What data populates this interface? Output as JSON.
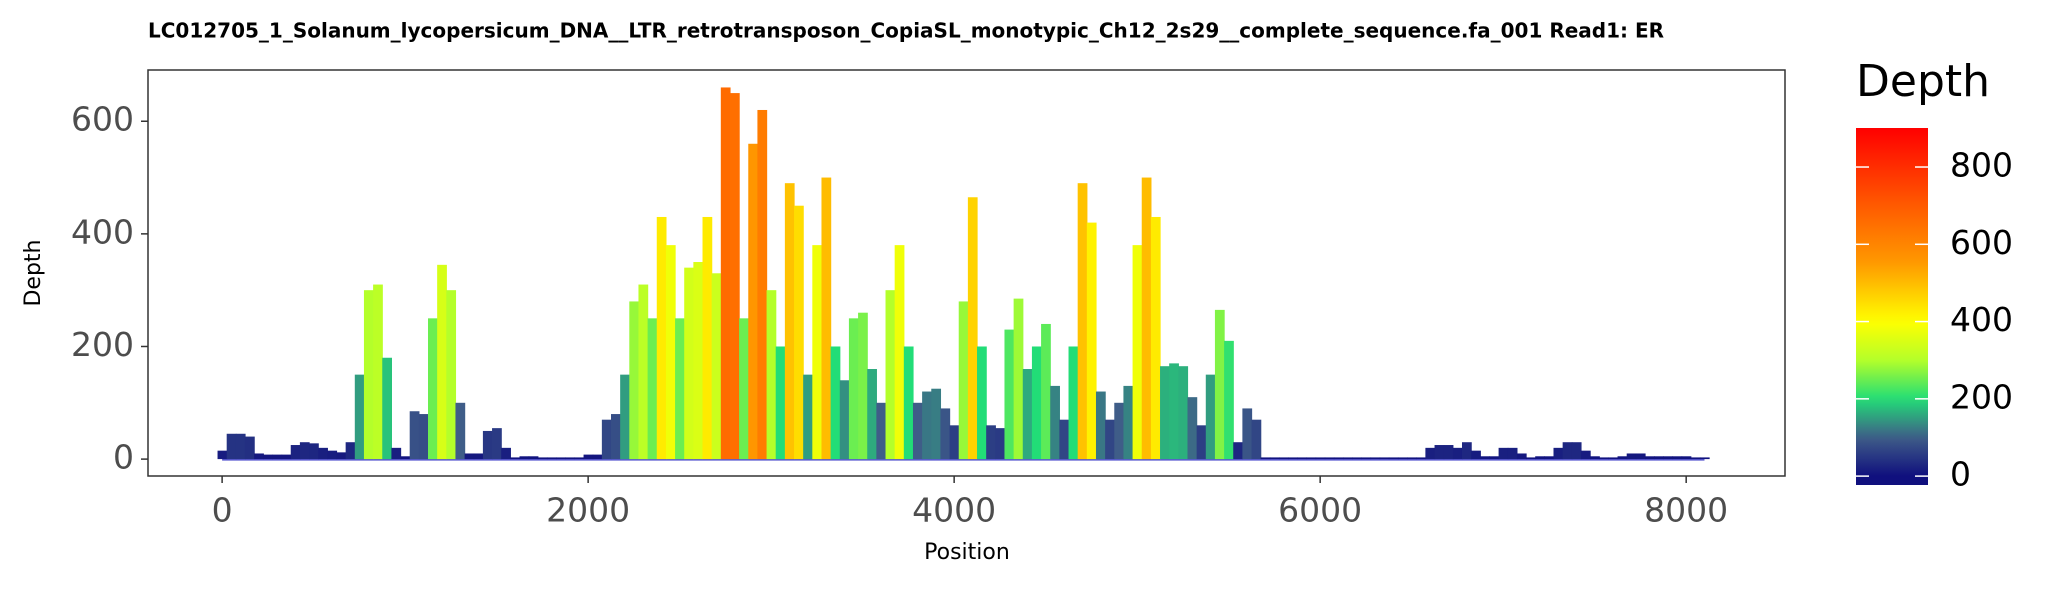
{
  "chart_data": {
    "type": "coverage",
    "title": "LC012705_1_Solanum_lycopersicum_DNA__LTR_retrotransposon_CopiaSL_monotypic_Ch12_2s29__complete_sequence.fa_001   Read1: ER",
    "x_label": "Position",
    "y_label": "Depth",
    "legend_title": "Depth",
    "x": [
      0,
      50,
      100,
      150,
      200,
      250,
      300,
      350,
      400,
      450,
      500,
      550,
      600,
      650,
      700,
      750,
      800,
      850,
      900,
      950,
      1000,
      1050,
      1100,
      1150,
      1200,
      1250,
      1300,
      1350,
      1400,
      1450,
      1500,
      1550,
      1600,
      1650,
      1700,
      1750,
      1800,
      1850,
      1900,
      1950,
      2000,
      2050,
      2100,
      2150,
      2200,
      2250,
      2300,
      2350,
      2400,
      2450,
      2500,
      2550,
      2600,
      2650,
      2700,
      2750,
      2800,
      2850,
      2900,
      2950,
      3000,
      3050,
      3100,
      3150,
      3200,
      3250,
      3300,
      3350,
      3400,
      3450,
      3500,
      3550,
      3600,
      3650,
      3700,
      3750,
      3800,
      3850,
      3900,
      3950,
      4000,
      4050,
      4100,
      4150,
      4200,
      4250,
      4300,
      4350,
      4400,
      4450,
      4500,
      4550,
      4600,
      4650,
      4700,
      4750,
      4800,
      4850,
      4900,
      4950,
      5000,
      5050,
      5100,
      5150,
      5200,
      5250,
      5300,
      5350,
      5400,
      5450,
      5500,
      5550,
      5600,
      5650,
      5700,
      5750,
      5800,
      5850,
      5900,
      5950,
      6000,
      6050,
      6100,
      6150,
      6200,
      6250,
      6300,
      6350,
      6400,
      6450,
      6500,
      6550,
      6600,
      6650,
      6700,
      6750,
      6800,
      6850,
      6900,
      6950,
      7000,
      7050,
      7100,
      7150,
      7200,
      7250,
      7300,
      7350,
      7400,
      7450,
      7500,
      7550,
      7600,
      7650,
      7700,
      7750,
      7800,
      7850,
      7900,
      7950,
      8000,
      8050,
      8100
    ],
    "values": [
      15,
      45,
      45,
      40,
      10,
      8,
      8,
      8,
      25,
      30,
      28,
      20,
      15,
      12,
      30,
      150,
      300,
      310,
      180,
      20,
      5,
      85,
      80,
      250,
      345,
      300,
      100,
      10,
      10,
      50,
      55,
      20,
      3,
      5,
      5,
      3,
      3,
      3,
      3,
      3,
      8,
      8,
      70,
      80,
      150,
      280,
      310,
      250,
      430,
      380,
      250,
      340,
      350,
      430,
      330,
      660,
      650,
      250,
      560,
      620,
      300,
      200,
      490,
      450,
      150,
      380,
      500,
      200,
      140,
      250,
      260,
      160,
      100,
      300,
      380,
      200,
      100,
      120,
      125,
      90,
      60,
      280,
      465,
      200,
      60,
      55,
      230,
      285,
      160,
      200,
      240,
      130,
      70,
      200,
      490,
      420,
      120,
      70,
      100,
      130,
      380,
      500,
      430,
      165,
      170,
      165,
      110,
      60,
      150,
      265,
      210,
      30,
      90,
      70,
      3,
      3,
      3,
      3,
      3,
      3,
      3,
      3,
      3,
      3,
      3,
      3,
      3,
      3,
      3,
      3,
      3,
      3,
      20,
      25,
      25,
      20,
      30,
      15,
      5,
      5,
      20,
      20,
      10,
      3,
      5,
      5,
      20,
      30,
      30,
      15,
      5,
      3,
      3,
      5,
      10,
      10,
      5,
      5,
      5,
      5,
      5,
      3,
      3
    ],
    "xlim": [
      -405,
      8540
    ],
    "ylim": [
      -30,
      691
    ],
    "xticks": [
      0,
      2000,
      4000,
      6000,
      8000
    ],
    "yticks": [
      0,
      200,
      400,
      600
    ],
    "clim": [
      -23,
      901
    ],
    "cticks": [
      0,
      200,
      400,
      600,
      800
    ],
    "colorscale": [
      {
        "value": 0,
        "color": "#10107e"
      },
      {
        "value": 100,
        "color": "#3f5d88"
      },
      {
        "value": 200,
        "color": "#22dd77"
      },
      {
        "value": 300,
        "color": "#b4ff2a"
      },
      {
        "value": 400,
        "color": "#ffff00"
      },
      {
        "value": 550,
        "color": "#ff9a00"
      },
      {
        "value": 700,
        "color": "#ff5a00"
      },
      {
        "value": 900,
        "color": "#ff0000"
      }
    ],
    "baseline_color": "#5a5ad0"
  }
}
